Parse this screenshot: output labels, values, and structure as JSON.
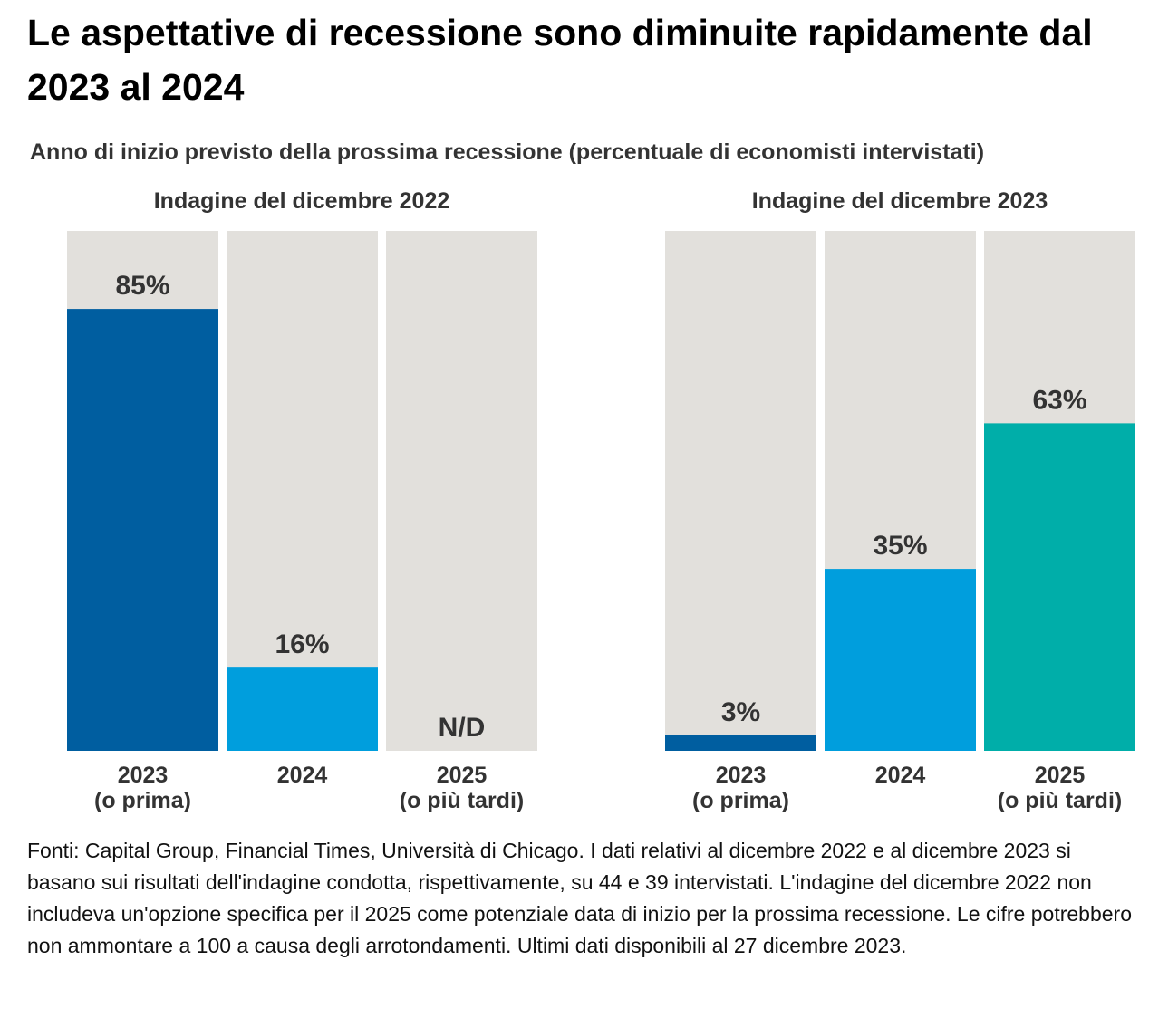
{
  "title": "Le aspettative di recessione sono diminuite rapidamente dal 2023 al 2024",
  "subtitle": "Anno di inizio previsto della prossima recessione (percentuale di economisti intervistati)",
  "note": "Fonti: Capital Group, Financial Times, Università di Chicago. I dati relativi al dicembre 2022 e al dicembre 2023 si basano sui risultati dell'indagine condotta, rispettivamente, su 44 e 39 intervistati. L'indagine del dicembre 2022 non includeva un'opzione specifica per il 2025 come potenziale data di inizio per la prossima recessione. Le cifre potrebbero non ammontare a 100 a causa degli arrotondamenti. Ultimi dati disponibili al 27 dicembre 2023.",
  "colors": {
    "background_bar": "#e2e0dc",
    "dark_blue": "#005ea0",
    "light_blue": "#009edd",
    "teal": "#00aea9",
    "text": "#333333"
  },
  "chart_data": [
    {
      "type": "bar",
      "title": "Indagine del dicembre 2022",
      "ylim": [
        0,
        100
      ],
      "categories": [
        {
          "line1": "2023",
          "line2": "(o prima)"
        },
        {
          "line1": "2024",
          "line2": ""
        },
        {
          "line1": "2025",
          "line2": "(o più tardi)"
        }
      ],
      "values": [
        85,
        16,
        null
      ],
      "labels": [
        "85%",
        "16%",
        "N/D"
      ],
      "bar_colors": [
        "#005ea0",
        "#009edd",
        "#e2e0dc"
      ]
    },
    {
      "type": "bar",
      "title": "Indagine del dicembre 2023",
      "ylim": [
        0,
        100
      ],
      "categories": [
        {
          "line1": "2023",
          "line2": "(o prima)"
        },
        {
          "line1": "2024",
          "line2": ""
        },
        {
          "line1": "2025",
          "line2": "(o più tardi)"
        }
      ],
      "values": [
        3,
        35,
        63
      ],
      "labels": [
        "3%",
        "35%",
        "63%"
      ],
      "bar_colors": [
        "#005ea0",
        "#009edd",
        "#00aea9"
      ]
    }
  ]
}
